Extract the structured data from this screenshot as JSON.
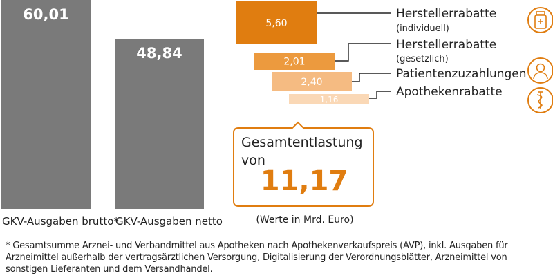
{
  "chart_data": {
    "type": "bar",
    "unit_note": "(Werte in Mrd. Euro)",
    "main_bars": {
      "categories": [
        "GKV-Ausgaben brutto*",
        "GKV-Ausgaben netto"
      ],
      "values": [
        60.01,
        48.84
      ],
      "value_labels": [
        "60,01",
        "48,84"
      ],
      "color": "#7a7a7a"
    },
    "discounts": [
      {
        "name": "Herstellerrabatte",
        "sub": "(individuell)",
        "value": 5.6,
        "value_label": "5,60",
        "color": "#e07d10"
      },
      {
        "name": "Herstellerrabatte",
        "sub": "(gesetzlich)",
        "value": 2.01,
        "value_label": "2,01",
        "color": "#ec9a3e"
      },
      {
        "name": "Patientenzuzahlungen",
        "sub": "",
        "value": 2.4,
        "value_label": "2,40",
        "color": "#f5bb82"
      },
      {
        "name": "Apothekenrabatte",
        "sub": "",
        "value": 1.16,
        "value_label": "1,16",
        "color": "#fad8b6"
      }
    ],
    "total": {
      "title_line1": "Gesamtentlastung",
      "title_line2": "von",
      "value": 11.17,
      "value_label": "11,17",
      "color": "#e07d10"
    },
    "icons": [
      "medicine-bottle-icon",
      "patient-icon",
      "pharmacy-caduceus-icon"
    ],
    "icon_color": "#e07d10"
  },
  "footnote": "* Gesamtsumme Arznei- und Verbandmittel aus Apotheken nach Apothekenverkaufspreis (AVP), inkl. Ausgaben für Arzneimittel außerhalb der vertragsärztlichen Versorgung, Digitalisierung der Verordnungsblätter, Arzneimittel von sonstigen Lieferanten und dem Versandhandel."
}
